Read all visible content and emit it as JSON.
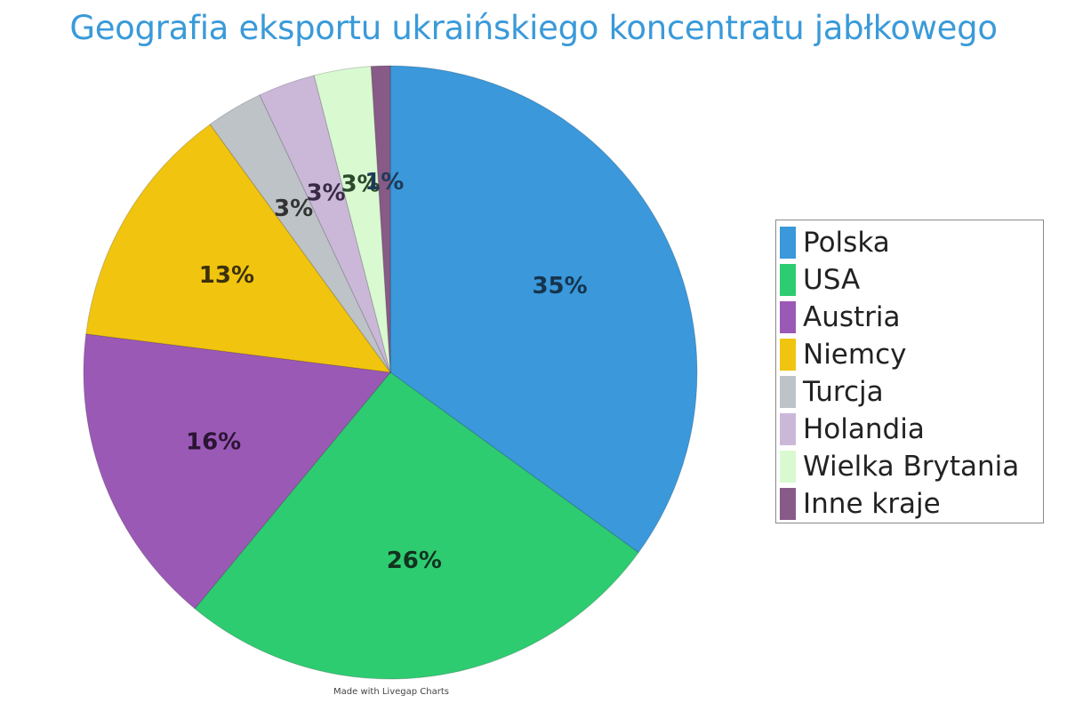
{
  "chart_data": {
    "type": "pie",
    "title": "Geografia eksportu ukraińskiego koncentratu jabłkowego",
    "legend_position": "right",
    "slices": [
      {
        "name": "Polska",
        "value": 35,
        "label": "35%",
        "color": "#3a98db",
        "label_color": "#16344d"
      },
      {
        "name": "USA",
        "value": 26,
        "label": "26%",
        "color": "#2ecc71",
        "label_color": "#12321f"
      },
      {
        "name": "Austria",
        "value": 16,
        "label": "16%",
        "color": "#9b59b6",
        "label_color": "#2a1533"
      },
      {
        "name": "Niemcy",
        "value": 13,
        "label": "13%",
        "color": "#f1c40f",
        "label_color": "#3b310a"
      },
      {
        "name": "Turcja",
        "value": 3,
        "label": "3%",
        "color": "#bdc3c7",
        "label_color": "#333333"
      },
      {
        "name": "Holandia",
        "value": 3,
        "label": "3%",
        "color": "#cbb8d9",
        "label_color": "#3a2a45"
      },
      {
        "name": "Wielka Brytania",
        "value": 3,
        "label": "3%",
        "color": "#d9f9d1",
        "label_color": "#2b4a2b"
      },
      {
        "name": "Inne kraje",
        "value": 1,
        "label": "1%",
        "color": "#875a87",
        "label_color": "#1f3a55"
      }
    ]
  },
  "credit": "Made with Livegap Charts"
}
